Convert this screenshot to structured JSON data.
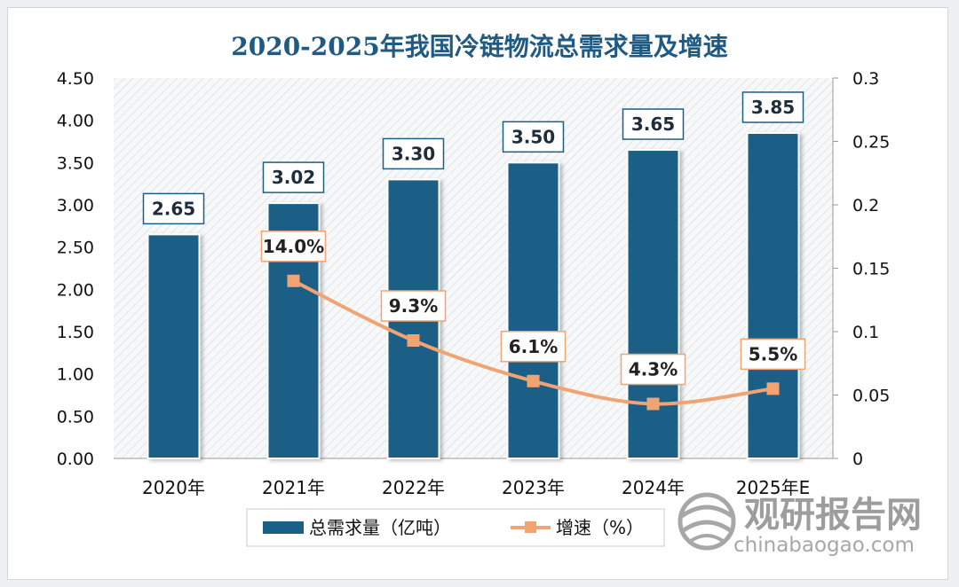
{
  "chart_data": {
    "type": "bar+line",
    "title": "2020-2025年我国冷链物流总需求量及增速",
    "categories": [
      "2020年",
      "2021年",
      "2022年",
      "2023年",
      "2024年",
      "2025年E"
    ],
    "series": [
      {
        "name": "总需求量（亿吨）",
        "type": "bar",
        "axis": "left",
        "color": "#1a5f86",
        "values": [
          2.65,
          3.02,
          3.3,
          3.5,
          3.65,
          3.85
        ],
        "labels": [
          "2.65",
          "3.02",
          "3.30",
          "3.50",
          "3.65",
          "3.85"
        ]
      },
      {
        "name": "增速（%）",
        "type": "line",
        "axis": "right",
        "color": "#f0a474",
        "values": [
          null,
          0.14,
          0.093,
          0.061,
          0.043,
          0.055
        ],
        "labels": [
          "",
          "14.0%",
          "9.3%",
          "6.1%",
          "4.3%",
          "5.5%"
        ]
      }
    ],
    "y_left": {
      "ylim": [
        0,
        4.5
      ],
      "ticks": [
        "0.00",
        "0.50",
        "1.00",
        "1.50",
        "2.00",
        "2.50",
        "3.00",
        "3.50",
        "4.00",
        "4.50"
      ]
    },
    "y_right": {
      "ylim": [
        0,
        0.3
      ],
      "ticks": [
        "0",
        "0.05",
        "0.1",
        "0.15",
        "0.2",
        "0.25",
        "0.3"
      ]
    },
    "legend": "bottom",
    "grid": false
  },
  "watermark": {
    "cn": "观研报告网",
    "en": "chinabaogao.com",
    "icon": "globe-logo-icon"
  }
}
